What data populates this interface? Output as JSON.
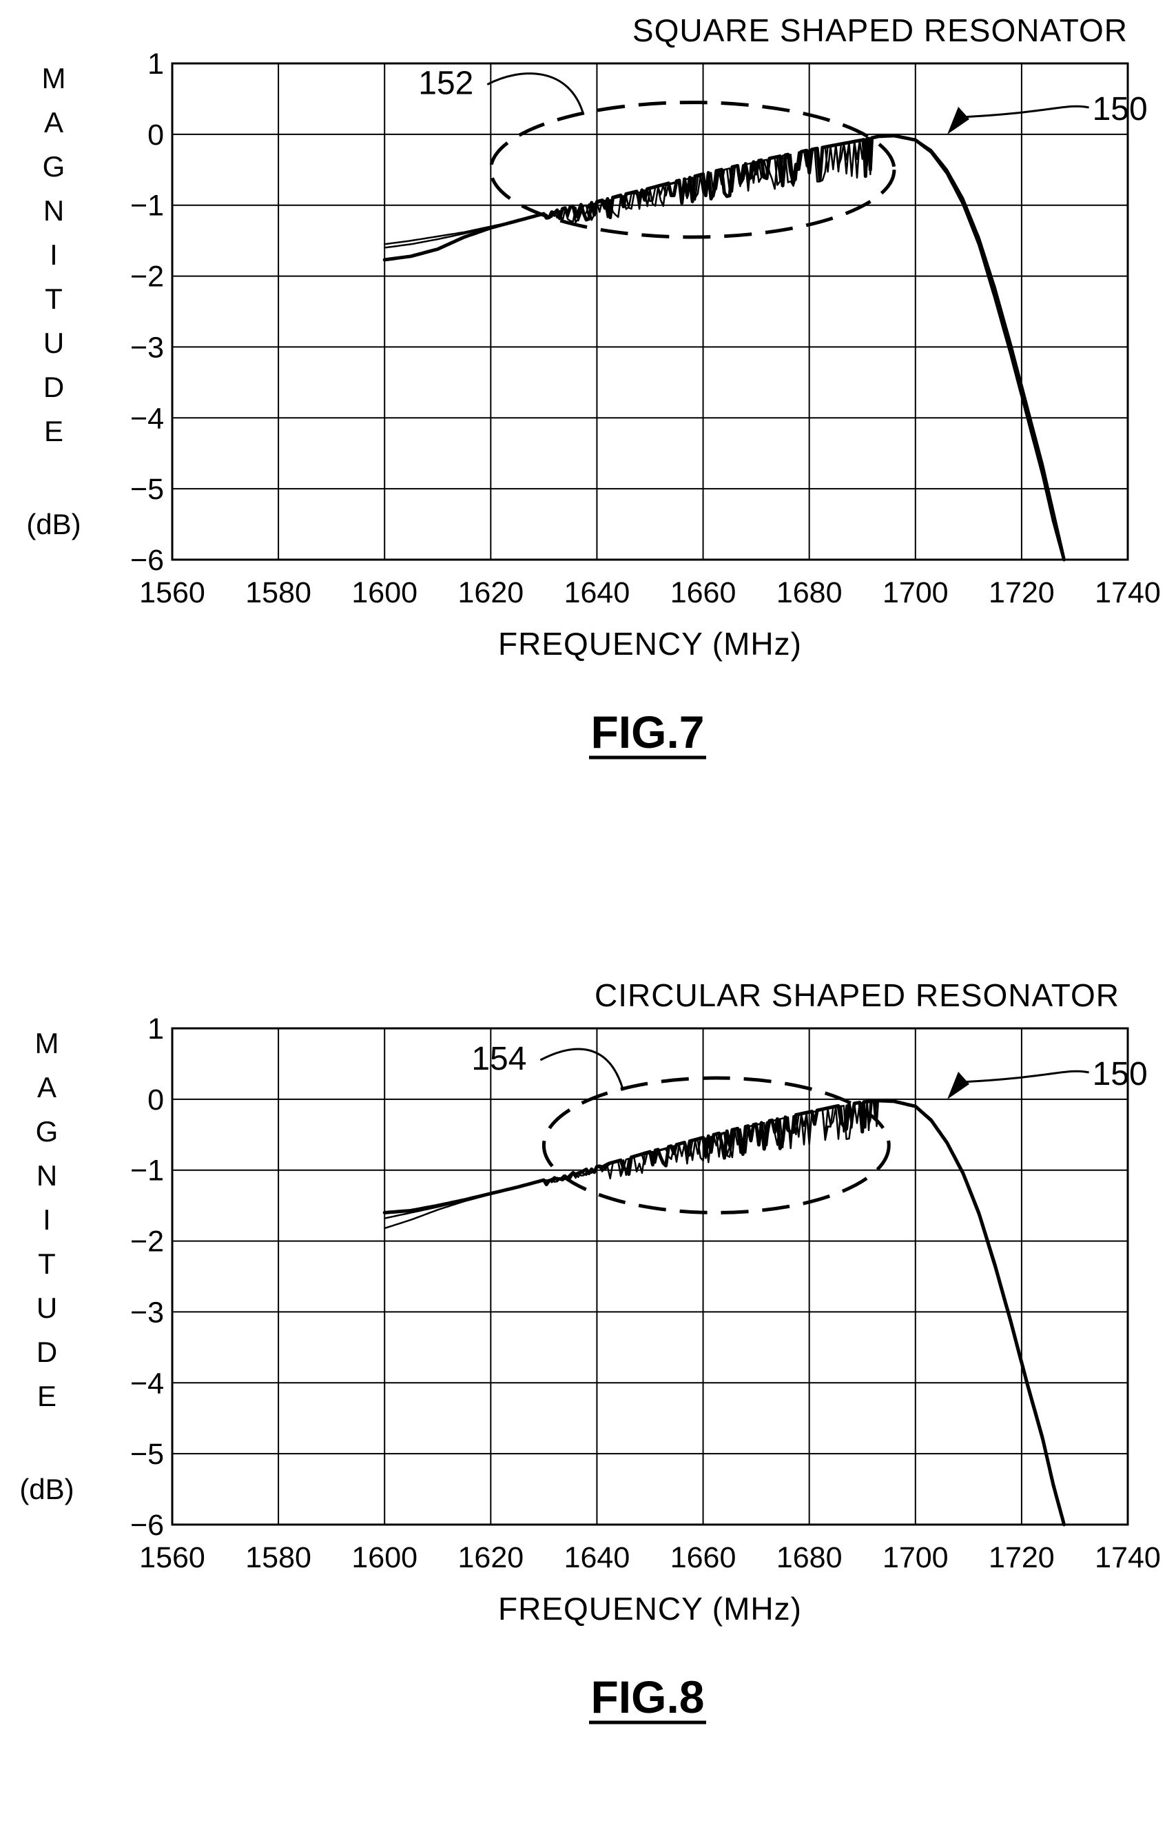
{
  "figures": [
    {
      "id": "fig-7",
      "caption": "FIG.7",
      "callouts": {
        "region": "152",
        "curve": "150"
      },
      "chart_data": {
        "type": "line",
        "title": "SQUARE SHAPED RESONATOR",
        "xlabel": "FREQUENCY (MHz)",
        "ylabel_letters": [
          "M",
          "A",
          "G",
          "N",
          "I",
          "T",
          "U",
          "D",
          "E"
        ],
        "ylabel_unit": "(dB)",
        "xlim": [
          1560,
          1740
        ],
        "ylim": [
          -6,
          1
        ],
        "x_ticks": [
          "1560",
          "1580",
          "1600",
          "1620",
          "1640",
          "1660",
          "1680",
          "1700",
          "1720",
          "1740"
        ],
        "y_ticks": [
          "1",
          "0",
          "−1",
          "−2",
          "−3",
          "−4",
          "−5",
          "−6"
        ],
        "grid": true,
        "ripple_region": {
          "x": [
            1620,
            1696
          ],
          "y": [
            -1.45,
            0.45
          ]
        },
        "series": [
          {
            "values_x": [
              1600,
              1605,
              1610,
              1615,
              1620,
              1625,
              1630,
              1635,
              1640,
              1645,
              1650,
              1655,
              1660,
              1665,
              1670,
              1675,
              1680,
              1685,
              1690,
              1693,
              1696,
              1700,
              1703,
              1706,
              1709,
              1712,
              1715,
              1718,
              1721,
              1724,
              1726,
              1728
            ],
            "values_y": [
              -1.77,
              -1.72,
              -1.62,
              -1.45,
              -1.32,
              -1.22,
              -1.12,
              -1.02,
              -0.95,
              -0.85,
              -0.76,
              -0.66,
              -0.56,
              -0.47,
              -0.38,
              -0.3,
              -0.22,
              -0.15,
              -0.08,
              -0.03,
              -0.02,
              -0.08,
              -0.25,
              -0.55,
              -0.98,
              -1.55,
              -2.3,
              -3.1,
              -3.95,
              -4.8,
              -5.45,
              -6.0
            ]
          },
          {
            "values_x": [
              1600,
              1605,
              1610,
              1615,
              1620,
              1625,
              1630,
              1635,
              1640,
              1645,
              1650,
              1655,
              1660,
              1665,
              1670,
              1675,
              1680,
              1685,
              1690,
              1693,
              1696,
              1700,
              1703,
              1706,
              1709,
              1712,
              1715,
              1718,
              1721,
              1724,
              1726,
              1728
            ],
            "values_y": [
              -1.55,
              -1.5,
              -1.44,
              -1.38,
              -1.3,
              -1.22,
              -1.13,
              -1.05,
              -0.97,
              -0.88,
              -0.78,
              -0.68,
              -0.58,
              -0.48,
              -0.39,
              -0.31,
              -0.23,
              -0.15,
              -0.08,
              -0.03,
              -0.02,
              -0.07,
              -0.22,
              -0.5,
              -0.9,
              -1.45,
              -2.15,
              -2.95,
              -3.8,
              -4.65,
              -5.3,
              -5.95
            ]
          },
          {
            "values_x": [
              1600,
              1605,
              1610,
              1615,
              1620,
              1625,
              1630,
              1635,
              1640,
              1645,
              1650,
              1655,
              1660,
              1665,
              1670,
              1675,
              1680,
              1685,
              1690,
              1693,
              1696,
              1700,
              1703,
              1706,
              1709,
              1712,
              1715,
              1718,
              1721,
              1724,
              1726,
              1728
            ],
            "values_y": [
              -1.6,
              -1.55,
              -1.48,
              -1.4,
              -1.31,
              -1.22,
              -1.13,
              -1.04,
              -0.96,
              -0.87,
              -0.77,
              -0.67,
              -0.57,
              -0.48,
              -0.39,
              -0.3,
              -0.22,
              -0.15,
              -0.08,
              -0.03,
              -0.02,
              -0.07,
              -0.23,
              -0.52,
              -0.93,
              -1.5,
              -2.22,
              -3.02,
              -3.88,
              -4.72,
              -5.38,
              -5.98
            ]
          }
        ]
      }
    },
    {
      "id": "fig-8",
      "caption": "FIG.8",
      "callouts": {
        "region": "154",
        "curve": "150"
      },
      "chart_data": {
        "type": "line",
        "title": "CIRCULAR SHAPED RESONATOR",
        "xlabel": "FREQUENCY (MHz)",
        "ylabel_letters": [
          "M",
          "A",
          "G",
          "N",
          "I",
          "T",
          "U",
          "D",
          "E"
        ],
        "ylabel_unit": "(dB)",
        "xlim": [
          1560,
          1740
        ],
        "ylim": [
          -6,
          1
        ],
        "x_ticks": [
          "1560",
          "1580",
          "1600",
          "1620",
          "1640",
          "1660",
          "1680",
          "1700",
          "1720",
          "1740"
        ],
        "y_ticks": [
          "1",
          "0",
          "−1",
          "−2",
          "−3",
          "−4",
          "−5",
          "−6"
        ],
        "grid": true,
        "ripple_region": {
          "x": [
            1630,
            1695
          ],
          "y": [
            -1.6,
            0.3
          ]
        },
        "series": [
          {
            "values_x": [
              1600,
              1605,
              1610,
              1615,
              1620,
              1625,
              1630,
              1635,
              1640,
              1645,
              1650,
              1655,
              1660,
              1665,
              1670,
              1675,
              1680,
              1685,
              1690,
              1693,
              1696,
              1700,
              1703,
              1706,
              1709,
              1712,
              1715,
              1718,
              1721,
              1724,
              1726,
              1728
            ],
            "values_y": [
              -1.6,
              -1.57,
              -1.5,
              -1.42,
              -1.33,
              -1.24,
              -1.14,
              -1.04,
              -0.95,
              -0.85,
              -0.74,
              -0.64,
              -0.54,
              -0.44,
              -0.35,
              -0.26,
              -0.18,
              -0.1,
              -0.04,
              -0.02,
              -0.03,
              -0.1,
              -0.3,
              -0.62,
              -1.05,
              -1.62,
              -2.35,
              -3.15,
              -4.0,
              -4.8,
              -5.45,
              -6.0
            ]
          },
          {
            "values_x": [
              1600,
              1605,
              1610,
              1615,
              1620,
              1625,
              1630,
              1635,
              1640,
              1645,
              1650,
              1655,
              1660,
              1665,
              1670,
              1675,
              1680,
              1685,
              1690,
              1693,
              1696,
              1700,
              1703,
              1706,
              1709,
              1712,
              1715,
              1718,
              1721,
              1724,
              1726,
              1728
            ],
            "values_y": [
              -1.82,
              -1.7,
              -1.56,
              -1.44,
              -1.34,
              -1.24,
              -1.14,
              -1.05,
              -0.96,
              -0.86,
              -0.76,
              -0.66,
              -0.56,
              -0.46,
              -0.36,
              -0.27,
              -0.19,
              -0.11,
              -0.05,
              -0.02,
              -0.03,
              -0.09,
              -0.28,
              -0.6,
              -1.02,
              -1.58,
              -2.3,
              -3.1,
              -3.95,
              -4.75,
              -5.4,
              -5.96
            ]
          },
          {
            "values_x": [
              1600,
              1605,
              1610,
              1615,
              1620,
              1625,
              1630,
              1635,
              1640,
              1645,
              1650,
              1655,
              1660,
              1665,
              1670,
              1675,
              1680,
              1685,
              1690,
              1693,
              1696,
              1700,
              1703,
              1706,
              1709,
              1712,
              1715,
              1718,
              1721,
              1724,
              1726,
              1728
            ],
            "values_y": [
              -1.68,
              -1.6,
              -1.52,
              -1.43,
              -1.33,
              -1.24,
              -1.14,
              -1.05,
              -0.96,
              -0.86,
              -0.75,
              -0.65,
              -0.55,
              -0.45,
              -0.36,
              -0.27,
              -0.19,
              -0.11,
              -0.05,
              -0.02,
              -0.03,
              -0.09,
              -0.29,
              -0.61,
              -1.04,
              -1.6,
              -2.32,
              -3.12,
              -3.97,
              -4.78,
              -5.42,
              -5.98
            ]
          }
        ]
      }
    }
  ]
}
